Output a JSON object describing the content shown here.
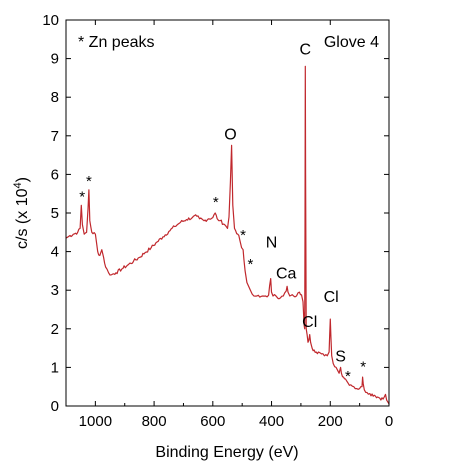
{
  "chart_data": {
    "type": "line",
    "xlabel": "Binding Energy (eV)",
    "ylabel": "c/s (x 10",
    "ylabel_exp": "4",
    "ylabel_close": ")",
    "xlim": [
      1100,
      0
    ],
    "ylim": [
      0,
      10
    ],
    "x_ticks": [
      1000,
      800,
      600,
      400,
      200,
      0
    ],
    "y_ticks": [
      0,
      1,
      2,
      3,
      4,
      5,
      6,
      7,
      8,
      9,
      10
    ],
    "legend_note": "* Zn peaks",
    "sample_label": "Glove 4",
    "line_color": "#c0282d",
    "peak_labels": [
      {
        "text": "C",
        "x": 285,
        "y": 9.1
      },
      {
        "text": "O",
        "x": 540,
        "y": 6.9
      },
      {
        "text": "N",
        "x": 400,
        "y": 4.1
      },
      {
        "text": "Ca",
        "x": 350,
        "y": 3.3
      },
      {
        "text": "Cl",
        "x": 197,
        "y": 2.7
      },
      {
        "text": "Cl",
        "x": 270,
        "y": 2.05
      },
      {
        "text": "S",
        "x": 165,
        "y": 1.15
      }
    ],
    "zn_peaks": [
      {
        "text": "*",
        "x": 1045,
        "y": 5.3
      },
      {
        "text": "*",
        "x": 1022,
        "y": 5.7
      },
      {
        "text": "*",
        "x": 590,
        "y": 5.15
      },
      {
        "text": "*",
        "x": 497,
        "y": 4.3
      },
      {
        "text": "*",
        "x": 472,
        "y": 3.55
      },
      {
        "text": "*",
        "x": 140,
        "y": 0.65
      },
      {
        "text": "*",
        "x": 88,
        "y": 0.9
      }
    ],
    "series": [
      {
        "points": [
          [
            1100,
            4.35
          ],
          [
            1090,
            4.4
          ],
          [
            1075,
            4.45
          ],
          [
            1060,
            4.5
          ],
          [
            1052,
            4.6
          ],
          [
            1048,
            5.2
          ],
          [
            1044,
            4.7
          ],
          [
            1038,
            4.45
          ],
          [
            1030,
            4.5
          ],
          [
            1025,
            5.1
          ],
          [
            1022,
            5.6
          ],
          [
            1019,
            4.8
          ],
          [
            1012,
            4.5
          ],
          [
            1000,
            4.45
          ],
          [
            992,
            4.0
          ],
          [
            985,
            3.9
          ],
          [
            978,
            4.05
          ],
          [
            972,
            3.85
          ],
          [
            965,
            3.6
          ],
          [
            955,
            3.45
          ],
          [
            945,
            3.4
          ],
          [
            930,
            3.45
          ],
          [
            910,
            3.55
          ],
          [
            890,
            3.65
          ],
          [
            870,
            3.75
          ],
          [
            850,
            3.85
          ],
          [
            830,
            3.98
          ],
          [
            810,
            4.1
          ],
          [
            790,
            4.25
          ],
          [
            770,
            4.38
          ],
          [
            750,
            4.52
          ],
          [
            730,
            4.65
          ],
          [
            710,
            4.76
          ],
          [
            690,
            4.83
          ],
          [
            670,
            4.88
          ],
          [
            655,
            4.92
          ],
          [
            645,
            4.85
          ],
          [
            630,
            4.8
          ],
          [
            615,
            4.85
          ],
          [
            600,
            4.88
          ],
          [
            592,
            5.0
          ],
          [
            585,
            4.85
          ],
          [
            575,
            4.8
          ],
          [
            560,
            4.7
          ],
          [
            550,
            4.6
          ],
          [
            545,
            4.9
          ],
          [
            540,
            5.8
          ],
          [
            536,
            6.75
          ],
          [
            532,
            5.2
          ],
          [
            526,
            4.6
          ],
          [
            515,
            4.45
          ],
          [
            508,
            4.3
          ],
          [
            502,
            4.1
          ],
          [
            497,
            4.05
          ],
          [
            494,
            3.8
          ],
          [
            490,
            3.5
          ],
          [
            484,
            3.2
          ],
          [
            478,
            3.1
          ],
          [
            472,
            3.0
          ],
          [
            466,
            2.9
          ],
          [
            460,
            2.85
          ],
          [
            450,
            2.85
          ],
          [
            440,
            2.82
          ],
          [
            430,
            2.85
          ],
          [
            420,
            2.85
          ],
          [
            410,
            2.87
          ],
          [
            403,
            3.3
          ],
          [
            400,
            2.95
          ],
          [
            395,
            2.85
          ],
          [
            385,
            2.85
          ],
          [
            370,
            2.8
          ],
          [
            360,
            2.85
          ],
          [
            350,
            2.98
          ],
          [
            347,
            3.1
          ],
          [
            344,
            2.95
          ],
          [
            338,
            2.85
          ],
          [
            325,
            2.85
          ],
          [
            315,
            2.85
          ],
          [
            305,
            2.95
          ],
          [
            298,
            2.88
          ],
          [
            293,
            2.7
          ],
          [
            289,
            2.1
          ],
          [
            287,
            2.0
          ],
          [
            286,
            4.5
          ],
          [
            285,
            8.8
          ],
          [
            284,
            6.0
          ],
          [
            282,
            2.0
          ],
          [
            279,
            1.85
          ],
          [
            276,
            1.65
          ],
          [
            273,
            1.7
          ],
          [
            270,
            1.85
          ],
          [
            267,
            1.65
          ],
          [
            262,
            1.5
          ],
          [
            255,
            1.45
          ],
          [
            248,
            1.4
          ],
          [
            240,
            1.4
          ],
          [
            230,
            1.35
          ],
          [
            220,
            1.3
          ],
          [
            210,
            1.3
          ],
          [
            204,
            1.4
          ],
          [
            202,
            1.85
          ],
          [
            200,
            2.25
          ],
          [
            198,
            1.8
          ],
          [
            195,
            1.3
          ],
          [
            190,
            1.1
          ],
          [
            180,
            1.0
          ],
          [
            170,
            0.85
          ],
          [
            165,
            1.0
          ],
          [
            162,
            0.85
          ],
          [
            155,
            0.75
          ],
          [
            148,
            0.7
          ],
          [
            140,
            0.6
          ],
          [
            130,
            0.55
          ],
          [
            120,
            0.5
          ],
          [
            110,
            0.45
          ],
          [
            100,
            0.45
          ],
          [
            92,
            0.5
          ],
          [
            90,
            0.75
          ],
          [
            88,
            0.58
          ],
          [
            84,
            0.42
          ],
          [
            75,
            0.35
          ],
          [
            65,
            0.32
          ],
          [
            50,
            0.28
          ],
          [
            35,
            0.22
          ],
          [
            20,
            0.18
          ],
          [
            12,
            0.3
          ],
          [
            8,
            0.15
          ],
          [
            5,
            0.12
          ],
          [
            2,
            0.08
          ],
          [
            0,
            0.05
          ]
        ]
      }
    ]
  }
}
